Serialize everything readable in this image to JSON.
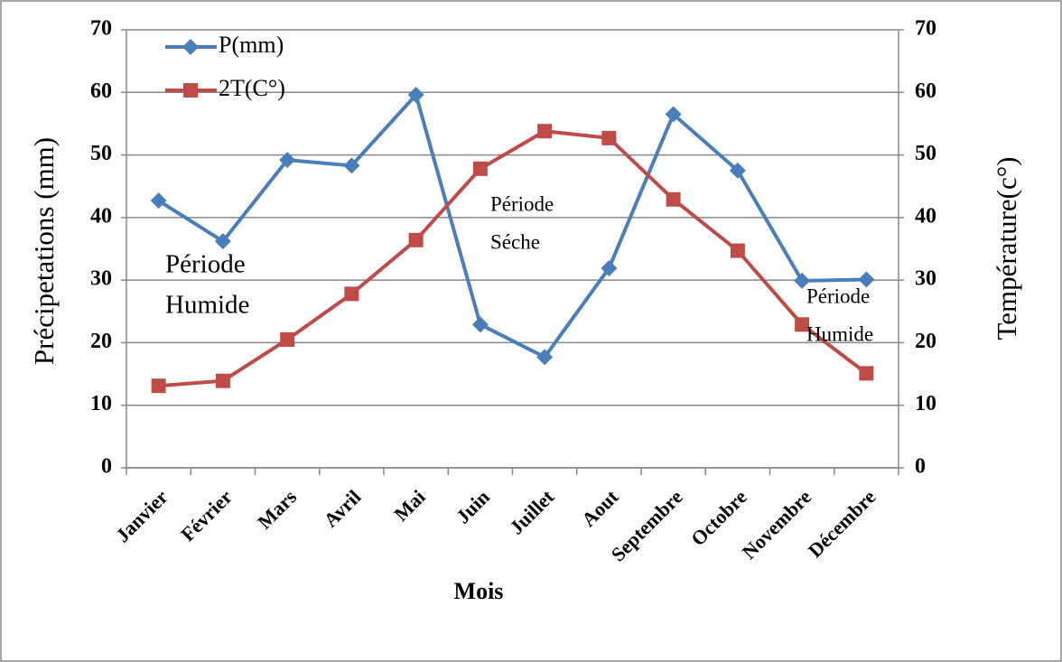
{
  "chart_data": {
    "type": "line",
    "x_label": "Mois",
    "y_label": "Précipetations (mm)",
    "y2_label": "Température(c°)",
    "categories": [
      "Janvier",
      "Février",
      "Mars",
      "Avril",
      "Mai",
      "Juin",
      "Juillet",
      "Aout",
      "Septembre",
      "Octobre",
      "Novembre",
      "Décembre"
    ],
    "series": [
      {
        "name": "P(mm)",
        "color": "#4a7ebb",
        "marker": "diamond",
        "values": [
          42.7,
          36.2,
          49.2,
          48.3,
          59.6,
          22.9,
          17.7,
          31.9,
          56.5,
          47.5,
          29.9,
          30.1
        ]
      },
      {
        "name": "2T(C°)",
        "color": "#be4b48",
        "marker": "square",
        "axis": "y2",
        "values": [
          13.1,
          13.9,
          20.5,
          27.8,
          36.4,
          47.8,
          53.8,
          52.7,
          42.9,
          34.7,
          22.9,
          15.1
        ]
      }
    ],
    "ylim": [
      0,
      70
    ],
    "yticks": [
      0,
      10,
      20,
      30,
      40,
      50,
      60,
      70
    ],
    "y2lim": [
      0,
      70
    ],
    "y2ticks": [
      0,
      10,
      20,
      30,
      40,
      50,
      60,
      70
    ],
    "grid": true,
    "legend": "top-left",
    "annotations": [
      [
        "Période",
        "Humide"
      ],
      [
        "Période",
        "Séche"
      ],
      [
        "Période",
        "Humide"
      ]
    ]
  }
}
